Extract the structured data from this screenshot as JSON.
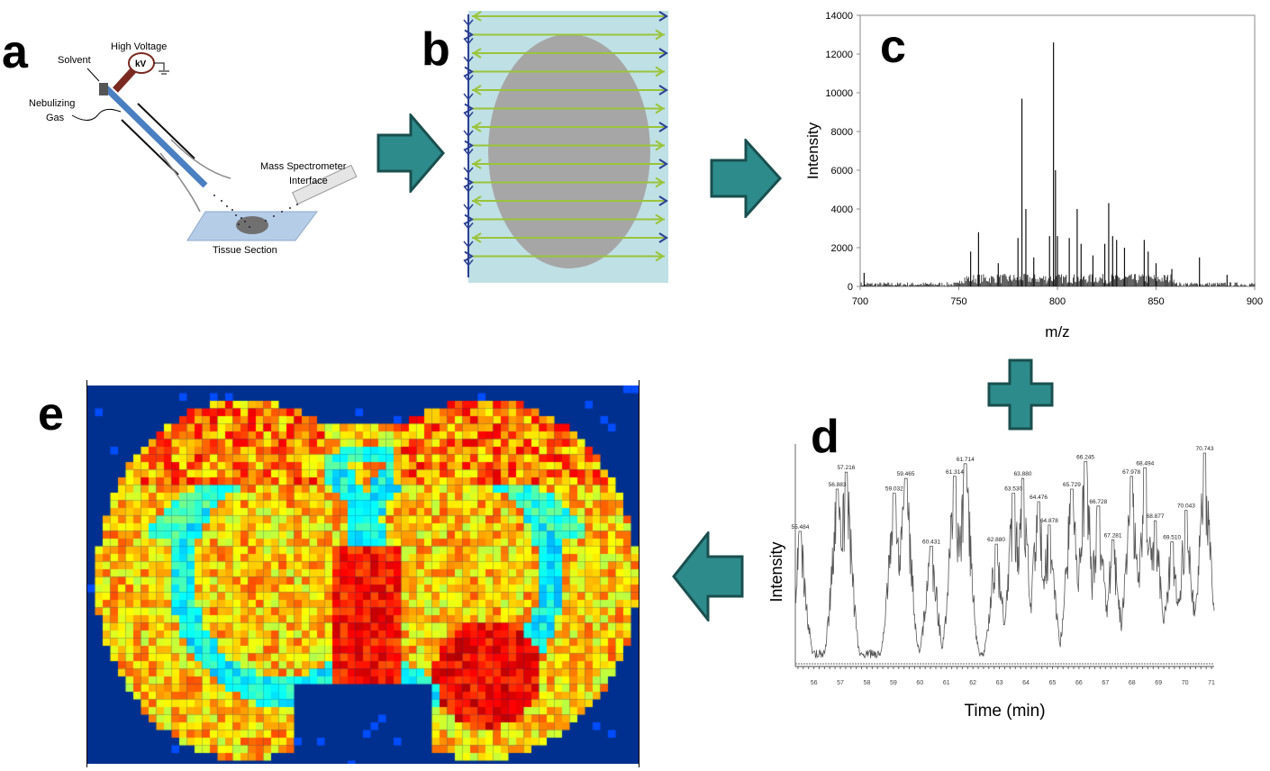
{
  "panels": {
    "a": {
      "letter": "a",
      "labels": {
        "high_voltage": "High Voltage",
        "kv": "kV",
        "solvent": "Solvent",
        "nebulizing_gas_1": "Nebulizing",
        "nebulizing_gas_2": "Gas",
        "ms_interface_1": "Mass Spectrometer",
        "ms_interface_2": "Interface",
        "tissue": "Tissue Section"
      }
    },
    "b": {
      "letter": "b"
    },
    "c": {
      "letter": "c"
    },
    "d": {
      "letter": "d"
    },
    "e": {
      "letter": "e"
    }
  },
  "colors": {
    "arrow_fill": "#2e8b8b",
    "arrow_stroke": "#1a4f4f",
    "sprayer": "#4a7fc1",
    "scan_bg": "#bfe0e4",
    "tissue_gray": "#a6a6a6",
    "raster_green": "#9ac43a",
    "raster_blue": "#2b3f95",
    "heatmap_bg": "#00308f"
  },
  "chart_data": [
    {
      "panel": "c",
      "type": "line",
      "xlabel": "m/z",
      "ylabel": "Intensity",
      "xlim": [
        700,
        900
      ],
      "ylim": [
        0,
        14000
      ],
      "xticks": [
        "700",
        "750",
        "800",
        "850",
        "900"
      ],
      "yticks": [
        "0",
        "2000",
        "4000",
        "6000",
        "8000",
        "10000",
        "12000",
        "14000"
      ],
      "peaks": [
        {
          "mz": 702,
          "intensity": 700
        },
        {
          "mz": 756,
          "intensity": 1800
        },
        {
          "mz": 760,
          "intensity": 2800
        },
        {
          "mz": 770,
          "intensity": 1200
        },
        {
          "mz": 780,
          "intensity": 2500
        },
        {
          "mz": 782,
          "intensity": 9700
        },
        {
          "mz": 784,
          "intensity": 4000
        },
        {
          "mz": 788,
          "intensity": 1500
        },
        {
          "mz": 796,
          "intensity": 2600
        },
        {
          "mz": 798,
          "intensity": 12600
        },
        {
          "mz": 799,
          "intensity": 6000
        },
        {
          "mz": 800,
          "intensity": 2600
        },
        {
          "mz": 806,
          "intensity": 2500
        },
        {
          "mz": 810,
          "intensity": 4000
        },
        {
          "mz": 812,
          "intensity": 2200
        },
        {
          "mz": 818,
          "intensity": 1600
        },
        {
          "mz": 824,
          "intensity": 2200
        },
        {
          "mz": 826,
          "intensity": 4300
        },
        {
          "mz": 828,
          "intensity": 2600
        },
        {
          "mz": 830,
          "intensity": 2400
        },
        {
          "mz": 834,
          "intensity": 2000
        },
        {
          "mz": 844,
          "intensity": 2400
        },
        {
          "mz": 846,
          "intensity": 1800
        },
        {
          "mz": 850,
          "intensity": 1200
        },
        {
          "mz": 858,
          "intensity": 900
        },
        {
          "mz": 872,
          "intensity": 1500
        },
        {
          "mz": 886,
          "intensity": 600
        }
      ]
    },
    {
      "panel": "d",
      "type": "line",
      "xlabel": "Time (min)",
      "ylabel": "Intensity",
      "xlim": [
        55.3,
        71.1
      ],
      "xticks": [
        "56",
        "57",
        "58",
        "59",
        "60",
        "61",
        "62",
        "63",
        "64",
        "65",
        "66",
        "67",
        "68",
        "69",
        "70",
        "71"
      ],
      "peaks": [
        {
          "label": "55.484",
          "time": 55.484,
          "relative_intensity": 63
        },
        {
          "label": "56.883",
          "time": 56.883,
          "relative_intensity": 83
        },
        {
          "label": "57.216",
          "time": 57.216,
          "relative_intensity": 91
        },
        {
          "label": "59.032",
          "time": 59.032,
          "relative_intensity": 81
        },
        {
          "label": "59.465",
          "time": 59.465,
          "relative_intensity": 88
        },
        {
          "label": "60.431",
          "time": 60.431,
          "relative_intensity": 56
        },
        {
          "label": "61.314",
          "time": 61.314,
          "relative_intensity": 89
        },
        {
          "label": "61.714",
          "time": 61.714,
          "relative_intensity": 95
        },
        {
          "label": "62.880",
          "time": 62.88,
          "relative_intensity": 57
        },
        {
          "label": "63.530",
          "time": 63.53,
          "relative_intensity": 81
        },
        {
          "label": "63.880",
          "time": 63.88,
          "relative_intensity": 88
        },
        {
          "label": "64.476",
          "time": 64.476,
          "relative_intensity": 77
        },
        {
          "label": "64.878",
          "time": 64.878,
          "relative_intensity": 66
        },
        {
          "label": "65.729",
          "time": 65.729,
          "relative_intensity": 83
        },
        {
          "label": "66.245",
          "time": 66.245,
          "relative_intensity": 96
        },
        {
          "label": "66.728",
          "time": 66.728,
          "relative_intensity": 75
        },
        {
          "label": "67.281",
          "time": 67.281,
          "relative_intensity": 59
        },
        {
          "label": "67.978",
          "time": 67.978,
          "relative_intensity": 89
        },
        {
          "label": "68.494",
          "time": 68.494,
          "relative_intensity": 93
        },
        {
          "label": "68.877",
          "time": 68.877,
          "relative_intensity": 68
        },
        {
          "label": "69.510",
          "time": 69.51,
          "relative_intensity": 58
        },
        {
          "label": "70.043",
          "time": 70.043,
          "relative_intensity": 73
        },
        {
          "label": "70.743",
          "time": 70.743,
          "relative_intensity": 100
        }
      ]
    },
    {
      "panel": "e",
      "type": "heatmap",
      "colormap": "jet"
    }
  ]
}
